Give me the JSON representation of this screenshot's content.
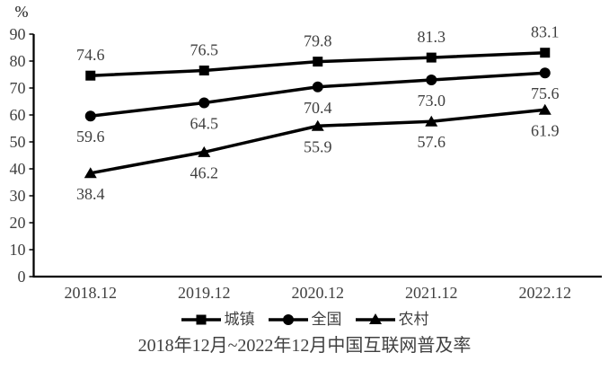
{
  "chart_data": {
    "type": "line",
    "title": "2018年12月~2022年12月中国互联网普及率",
    "unit_label": "%",
    "categories": [
      "2018.12",
      "2019.12",
      "2020.12",
      "2021.12",
      "2022.12"
    ],
    "series": [
      {
        "name": "城镇",
        "marker": "square",
        "values": [
          74.6,
          76.5,
          79.8,
          81.3,
          83.1
        ],
        "labels": [
          "74.6",
          "76.5",
          "79.8",
          "81.3",
          "83.1"
        ],
        "label_position": "above"
      },
      {
        "name": "全国",
        "marker": "circle",
        "values": [
          59.6,
          64.5,
          70.4,
          73.0,
          75.6
        ],
        "labels": [
          "59.6",
          "64.5",
          "70.4",
          "73.0",
          "75.6"
        ],
        "label_position": "below"
      },
      {
        "name": "农村",
        "marker": "triangle",
        "values": [
          38.4,
          46.2,
          55.9,
          57.6,
          61.9
        ],
        "labels": [
          "38.4",
          "46.2",
          "55.9",
          "57.6",
          "61.9"
        ],
        "label_position": "below"
      }
    ],
    "ylim": [
      0,
      90
    ],
    "ytick_step": 10,
    "grid": false,
    "legend_position": "bottom",
    "colors": {
      "line": "#000000",
      "axis": "#000000",
      "text": "#404040",
      "unit": "#1a1a1a"
    }
  }
}
